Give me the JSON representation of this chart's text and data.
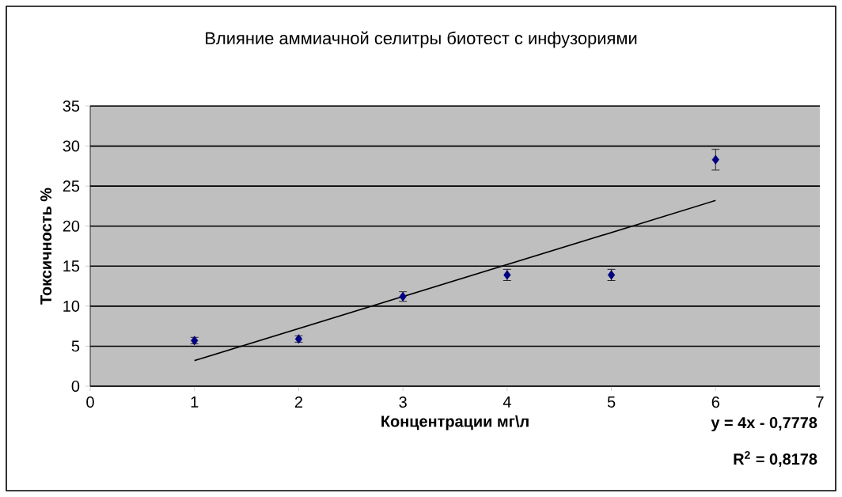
{
  "chart_data": {
    "type": "scatter",
    "title": "Влияние аммиачной селитры биотест с инфузориями",
    "xlabel": "Концентрации мг\\л",
    "ylabel": "Токсичность %",
    "xlim": [
      0,
      7
    ],
    "xticks": [
      0,
      1,
      2,
      3,
      4,
      5,
      6,
      7
    ],
    "ylim": [
      0,
      35
    ],
    "yticks": [
      0,
      5,
      10,
      15,
      20,
      25,
      30,
      35
    ],
    "grid": "y",
    "series": [
      {
        "marker": "diamond",
        "color": "#000080",
        "x": [
          1,
          2,
          3,
          4,
          5,
          6
        ],
        "values": [
          5.7,
          5.9,
          11.2,
          13.9,
          13.9,
          28.3
        ],
        "errors": [
          0.4,
          0.4,
          0.6,
          0.7,
          0.7,
          1.3
        ]
      },
      {
        "type": "line",
        "marker": "none",
        "color": "#000000",
        "x": [
          1,
          6
        ],
        "values": [
          3.2,
          23.2
        ]
      }
    ],
    "annotations": [
      "y = 4x - 0,7778",
      "R$^{2}$ = 0,8178"
    ]
  }
}
